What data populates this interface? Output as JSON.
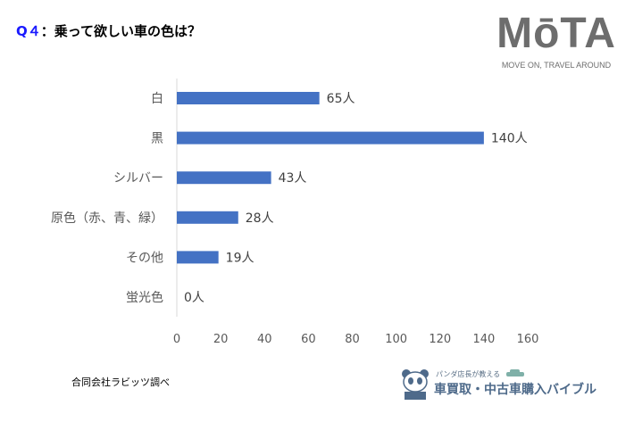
{
  "title": {
    "q": "Q４",
    "text": "：乗って欲しい車の色は？"
  },
  "logo": {
    "name": "MōTA",
    "tagline": "MOVE ON, TRAVEL AROUND"
  },
  "source": "合同会社ラビッツ調べ",
  "footer_brand": {
    "sub": "パンダ店長が教える",
    "main": "車買取・中古車購入バイブル"
  },
  "chart_data": {
    "type": "bar",
    "orientation": "horizontal",
    "categories": [
      "白",
      "黒",
      "シルバー",
      "原色（赤、青、緑）",
      "その他",
      "蛍光色"
    ],
    "values": [
      65,
      140,
      43,
      28,
      19,
      0
    ],
    "data_labels": [
      "65人",
      "140人",
      "43人",
      "28人",
      "19人",
      "0人"
    ],
    "xlim": [
      0,
      160
    ],
    "xticks": [
      "0",
      "20",
      "40",
      "60",
      "80",
      "100",
      "120",
      "140",
      "160"
    ],
    "grid": false,
    "bar_color": "#4472c4"
  }
}
